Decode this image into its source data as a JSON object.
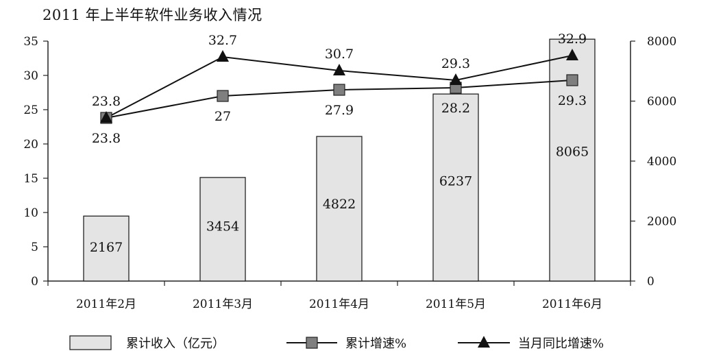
{
  "chart_data": {
    "type": "bar",
    "title": "2011 年上半年软件业务收入情况",
    "categories": [
      "2011年2月",
      "2011年3月",
      "2011年4月",
      "2011年5月",
      "2011年6月"
    ],
    "series": [
      {
        "name": "累计收入（亿元）",
        "type": "bar",
        "axis": "right",
        "values": [
          2167,
          3454,
          4822,
          6237,
          8065
        ]
      },
      {
        "name": "累计增速%",
        "type": "line",
        "marker": "square",
        "axis": "left",
        "values": [
          23.8,
          27,
          27.9,
          28.2,
          29.3
        ]
      },
      {
        "name": "当月同比增速%",
        "type": "line",
        "marker": "triangle",
        "axis": "left",
        "values": [
          23.8,
          32.7,
          30.7,
          29.3,
          32.9
        ]
      }
    ],
    "y_left": {
      "min": 0,
      "max": 35,
      "ticks": [
        0,
        5,
        10,
        15,
        20,
        25,
        30,
        35
      ]
    },
    "y_right": {
      "min": 0,
      "max": 8000,
      "ticks": [
        0,
        2000,
        4000,
        6000,
        8000
      ]
    },
    "legend": "bottom",
    "grid": false,
    "colors": {
      "bar_fill": "#e4e4e4",
      "bar_stroke": "#222222",
      "square_marker": "#7f7f7f",
      "triangle_marker": "#111111",
      "line": "#111111"
    }
  }
}
